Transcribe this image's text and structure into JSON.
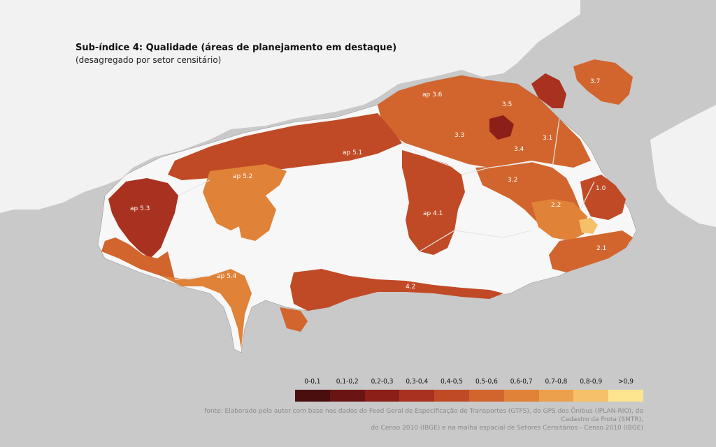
{
  "title": "Sub-índice 4: Qualidade  (áreas de planejamento em destaque)",
  "subtitle": "(desagregado por setor censitário)",
  "legend": {
    "items": [
      {
        "label": "0-0,1",
        "color": "#4a0e0e"
      },
      {
        "label": "0,1-0,2",
        "color": "#6b1414"
      },
      {
        "label": "0,2-0,3",
        "color": "#8c1f18"
      },
      {
        "label": "0,3-0,4",
        "color": "#a8321f"
      },
      {
        "label": "0,4-0,5",
        "color": "#c04a26"
      },
      {
        "label": "0,5-0,6",
        "color": "#d2652d"
      },
      {
        "label": "0,6-0,7",
        "color": "#e08238"
      },
      {
        "label": "0,7-0,8",
        "color": "#eda04c"
      },
      {
        "label": "0,8-0,9",
        "color": "#f6c06a"
      },
      {
        "label": ">0,9",
        "color": "#fde58f"
      }
    ]
  },
  "source_line1": "fonte: Elaborado pelo autor com base nos dados do Feed Geral de Especificação de Transportes (GTFS), do GPS dos Ônibus (IPLAN-RIO), do Cadastro da Frota (SMTR),",
  "source_line2": "do Censo 2010 (IBGE) e na malha espacial de Setores Censitários - Censo 2010 (IBGE)",
  "areas": [
    "ap 3.6",
    "3.7",
    "3.5",
    "3.3",
    "3.1",
    "3.4",
    "ap 5.1",
    "ap 5.2",
    "3.2",
    "1.0",
    "ap 5.3",
    "2.2",
    "ap 4.1",
    "2.1",
    "ap 5.4",
    "4.2"
  ]
}
